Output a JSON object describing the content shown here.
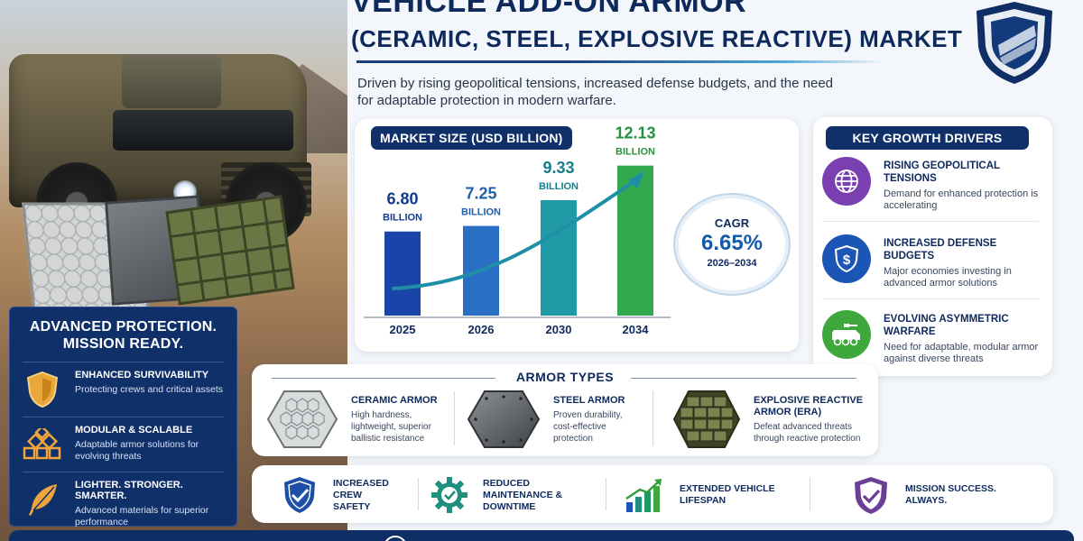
{
  "header": {
    "title_line1": "VEHICLE ADD-ON ARMOR",
    "title_line2": "(CERAMIC, STEEL, EXPLOSIVE REACTIVE) MARKET",
    "subtitle": "Driven by rising geopolitical tensions, increased defense budgets, and the need for adaptable protection in modern warfare."
  },
  "promo": {
    "title": "ADVANCED PROTECTION. MISSION READY.",
    "items": [
      {
        "icon": "shield-icon",
        "title": "ENHANCED SURVIVABILITY",
        "text": "Protecting crews and critical assets"
      },
      {
        "icon": "modular-blocks-icon",
        "title": "MODULAR & SCALABLE",
        "text": "Adaptable armor solutions for evolving threats"
      },
      {
        "icon": "feather-icon",
        "title": "LIGHTER. STRONGER. SMARTER.",
        "text": "Advanced materials for superior performance"
      }
    ]
  },
  "market": {
    "label": "MARKET SIZE (USD BILLION)"
  },
  "chart_data": {
    "type": "bar",
    "title": "MARKET SIZE (USD BILLION)",
    "categories": [
      "2025",
      "2026",
      "2030",
      "2034"
    ],
    "values": [
      6.8,
      7.25,
      9.33,
      12.13
    ],
    "value_labels": [
      "6.80",
      "7.25",
      "9.33",
      "12.13"
    ],
    "unit_label": "BILLION",
    "bar_colors": [
      "#1a45a8",
      "#2a6fc4",
      "#1f9aa6",
      "#33a94e"
    ],
    "label_colors": [
      "#123b8e",
      "#1f5fae",
      "#147e8a",
      "#26903f"
    ],
    "trend_arrow": true,
    "ylim": [
      0,
      14
    ],
    "grid": false,
    "legend": "none"
  },
  "cagr": {
    "label": "CAGR",
    "value": "6.65%",
    "period": "2026–2034"
  },
  "drivers": {
    "title": "KEY GROWTH DRIVERS",
    "items": [
      {
        "icon": "globe-icon",
        "color": "#7a3fb0",
        "title": "RISING GEOPOLITICAL TENSIONS",
        "text": "Demand for enhanced protection is accelerating"
      },
      {
        "icon": "dollar-shield-icon",
        "color": "#1b55b6",
        "title": "INCREASED DEFENSE BUDGETS",
        "text": "Major economies investing in advanced armor solutions"
      },
      {
        "icon": "armored-vehicle-icon",
        "color": "#3ea83c",
        "title": "EVOLVING ASYMMETRIC WARFARE",
        "text": "Need for adaptable, modular armor against diverse threats"
      }
    ]
  },
  "armor": {
    "title": "ARMOR TYPES",
    "items": [
      {
        "icon": "ceramic-hex-icon",
        "title": "CERAMIC ARMOR",
        "text": "High hardness, lightweight, superior ballistic resistance"
      },
      {
        "icon": "steel-plate-icon",
        "title": "STEEL ARMOR",
        "text": "Proven durability, cost-effective protection"
      },
      {
        "icon": "era-blocks-icon",
        "title": "EXPLOSIVE REACTIVE ARMOR (ERA)",
        "text": "Defeat advanced threats through reactive protection"
      }
    ]
  },
  "benefits": [
    {
      "icon": "check-shield-icon",
      "text": "INCREASED CREW SAFETY"
    },
    {
      "icon": "gear-check-icon",
      "text": "REDUCED MAINTENANCE & DOWNTIME"
    },
    {
      "icon": "growth-bars-icon",
      "text": "EXTENDED VEHICLE LIFESPAN"
    },
    {
      "icon": "purple-check-shield-icon",
      "text": "MISSION SUCCESS. ALWAYS."
    }
  ]
}
